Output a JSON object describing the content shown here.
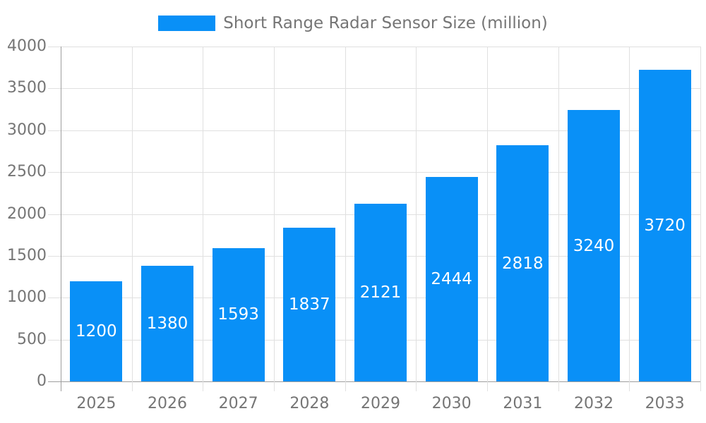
{
  "chart_data": {
    "type": "bar",
    "title": "",
    "categories": [
      "2025",
      "2026",
      "2027",
      "2028",
      "2029",
      "2030",
      "2031",
      "2032",
      "2033"
    ],
    "series": [
      {
        "name": "Short Range Radar Sensor Size (million)",
        "values": [
          1200,
          1380,
          1593,
          1837,
          2121,
          2444,
          2818,
          3240,
          3720
        ]
      }
    ],
    "value_labels_shown": true,
    "xlabel": "",
    "ylabel": "",
    "ylim": [
      0,
      4000
    ],
    "yticks": [
      0,
      500,
      1000,
      1500,
      2000,
      2500,
      3000,
      3500,
      4000
    ],
    "grid": true,
    "legend_position": "top-center",
    "colors": {
      "bar": "#0990f7",
      "value_label": "#ffffff",
      "axis_label": "#757575",
      "legend_text": "#757575",
      "gridline": "#e0e0e0",
      "axis_line": "#9e9e9e",
      "background": "#ffffff"
    }
  },
  "legend": {
    "label": "Short Range Radar Sensor Size (million)"
  }
}
